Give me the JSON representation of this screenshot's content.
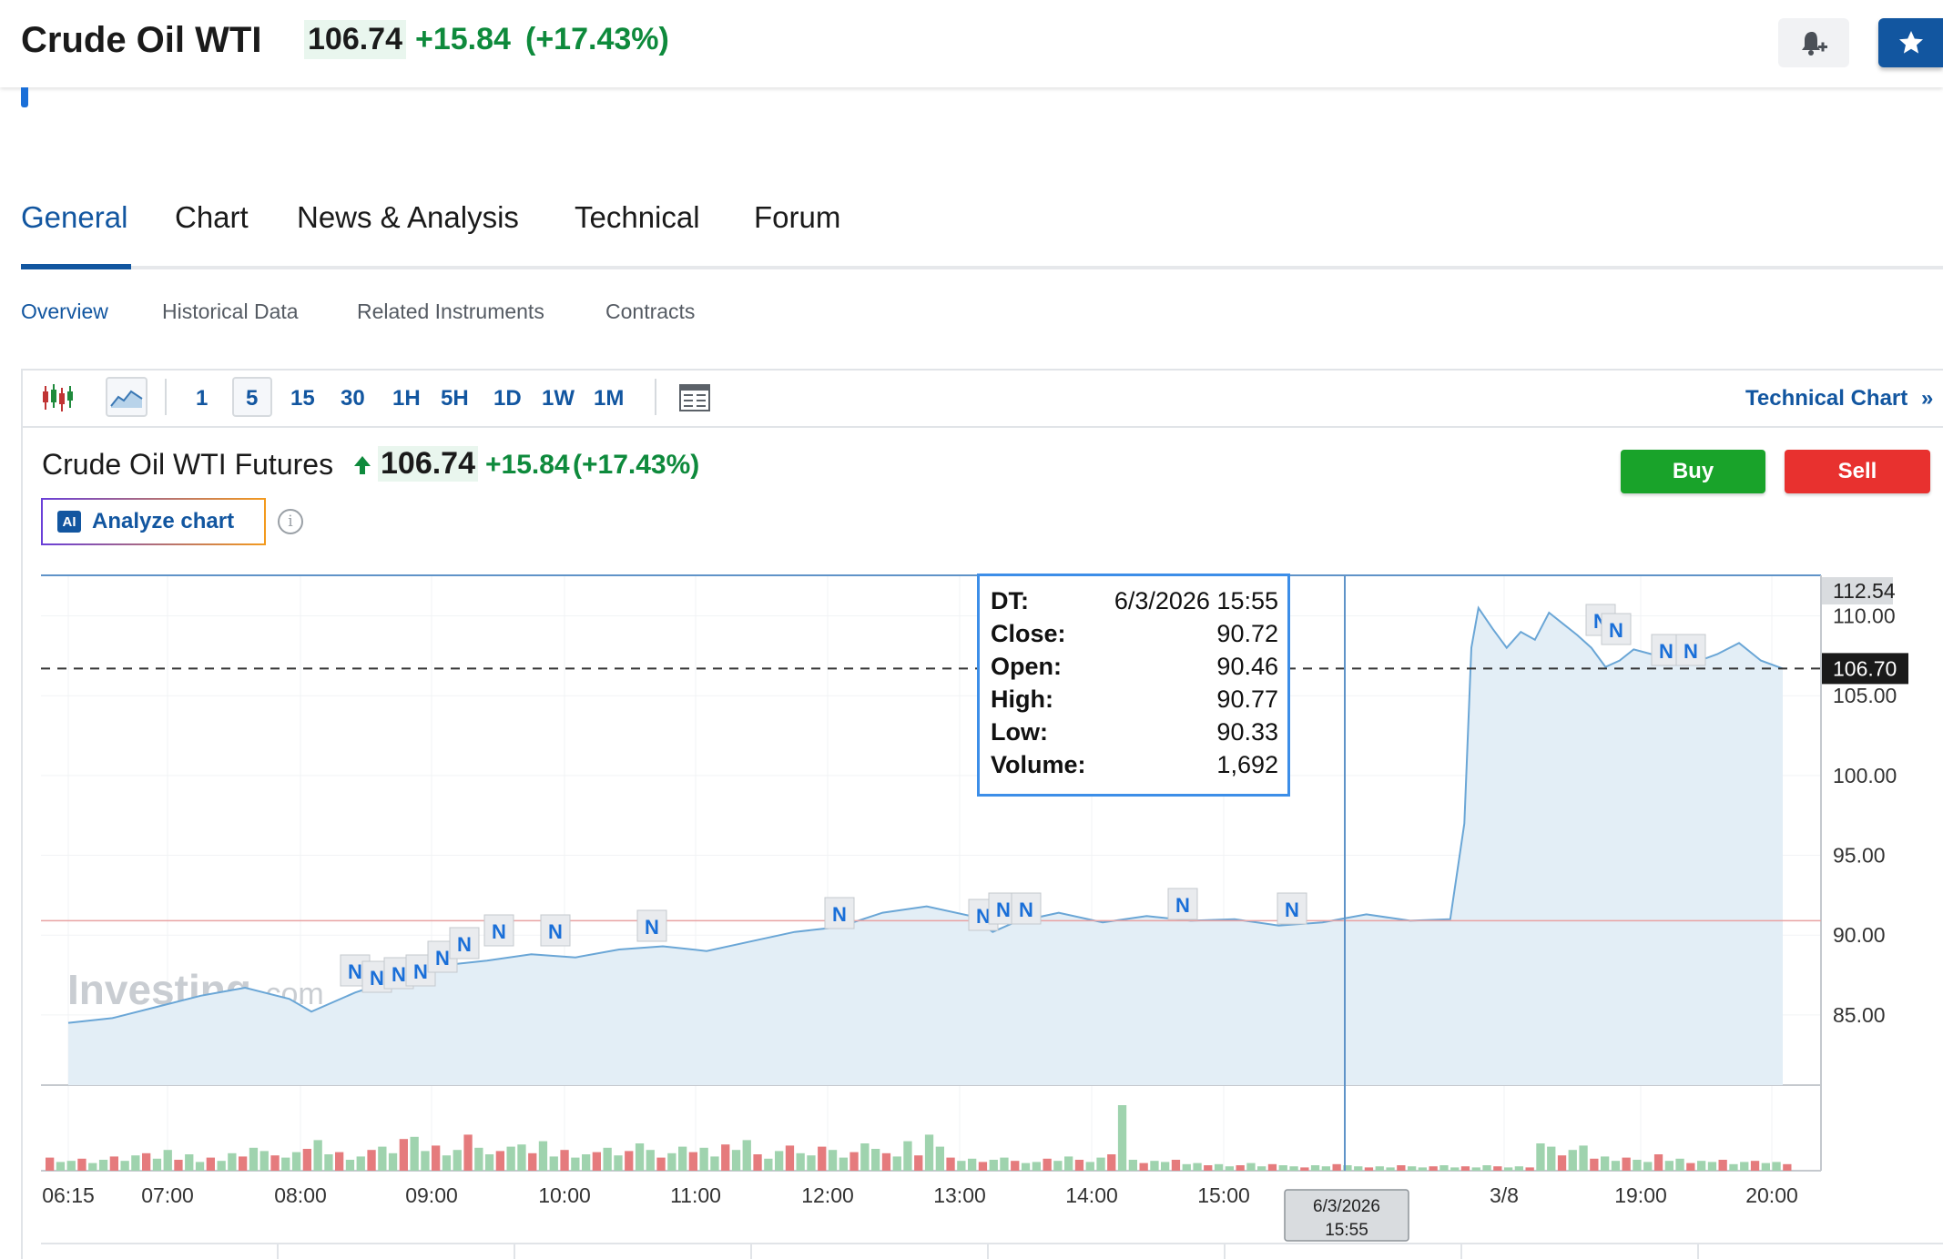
{
  "header": {
    "title": "Crude Oil WTI",
    "price": "106.74",
    "change": "+15.84",
    "change_pct": "(+17.43%)"
  },
  "tabs": [
    "General",
    "Chart",
    "News & Analysis",
    "Technical",
    "Forum"
  ],
  "subtabs": [
    "Overview",
    "Historical Data",
    "Related Instruments",
    "Contracts"
  ],
  "toolbar": {
    "timeframes": [
      "1",
      "5",
      "15",
      "30",
      "1H",
      "5H",
      "1D",
      "1W",
      "1M"
    ],
    "selected_timeframe": "5",
    "technical_chart_label": "Technical Chart",
    "technical_chart_arrow": "»"
  },
  "chart_header": {
    "title": "Crude Oil WTI Futures",
    "price": "106.74",
    "change": "+15.84",
    "change_pct": "(+17.43%)",
    "buy_label": "Buy",
    "sell_label": "Sell",
    "analyze_label": "Analyze chart",
    "ai_badge": "AI"
  },
  "watermark": {
    "main": "Investing",
    "suffix": ".com"
  },
  "tooltip": {
    "rows": [
      {
        "key": "DT:",
        "value": "6/3/2026 15:55"
      },
      {
        "key": "Close:",
        "value": "90.72"
      },
      {
        "key": "Open:",
        "value": "90.46"
      },
      {
        "key": "High:",
        "value": "90.77"
      },
      {
        "key": "Low:",
        "value": "90.33"
      },
      {
        "key": "Volume:",
        "value": "1,692"
      }
    ]
  },
  "colors": {
    "accent": "#1256a0",
    "up": "#0e8a3c",
    "line": "#6aa6d6",
    "area": "#e3eef6",
    "vol_up": "#9fd3ae",
    "vol_down": "#e57b7d",
    "buy": "#19a32a",
    "sell": "#e8312f"
  },
  "chart_data": {
    "type": "area",
    "y_ticks": [
      "85.00",
      "90.00",
      "95.00",
      "100.00",
      "105.00",
      "110.00"
    ],
    "ylim": [
      80.6,
      112.54
    ],
    "top_label": "112.54",
    "last_price_label": "106.70",
    "last_price": 106.7,
    "reference_price": 90.9,
    "x_ticks": [
      "06:15",
      "07:00",
      "08:00",
      "09:00",
      "10:00",
      "11:00",
      "12:00",
      "13:00",
      "14:00",
      "15:00",
      "3/8",
      "19:00",
      "20:00"
    ],
    "crosshair_label": [
      "6/3/2026",
      "15:55"
    ],
    "news_marker_label": "N",
    "series": [
      {
        "x": [
          "06:15",
          "06:35",
          "06:55",
          "07:15",
          "07:35",
          "07:55",
          "08:05",
          "08:25",
          "08:45",
          "09:05",
          "09:25",
          "09:45",
          "10:05",
          "10:25",
          "10:45",
          "11:05",
          "11:25",
          "11:45",
          "12:05",
          "12:25",
          "12:45",
          "13:05",
          "13:15",
          "13:25",
          "13:45",
          "14:05",
          "14:25",
          "14:45",
          "15:05",
          "15:25",
          "15:45",
          "16:05",
          "16:25",
          "16:45",
          "16:55",
          "17:00",
          "17:05",
          "17:15",
          "17:25",
          "17:35",
          "17:45",
          "17:55",
          "18:05",
          "18:15",
          "18:25",
          "18:35",
          "18:45",
          "18:55",
          "19:05",
          "19:15",
          "19:25",
          "19:35",
          "19:45",
          "19:55",
          "20:05"
        ],
        "values": [
          84.5,
          84.8,
          85.5,
          86.2,
          86.7,
          86.0,
          85.2,
          86.4,
          87.3,
          88.1,
          88.4,
          88.8,
          88.6,
          89.1,
          89.3,
          89.0,
          89.6,
          90.2,
          90.5,
          91.4,
          91.8,
          91.2,
          90.2,
          90.8,
          91.4,
          90.8,
          91.2,
          90.9,
          91.0,
          90.6,
          90.8,
          91.3,
          90.9,
          91.0,
          97.0,
          108.0,
          110.5,
          109.2,
          108.0,
          109.0,
          108.5,
          110.2,
          109.5,
          108.8,
          108.0,
          106.8,
          107.2,
          107.9,
          107.6,
          107.2,
          107.1,
          107.6,
          108.3,
          107.2,
          106.7
        ]
      }
    ],
    "volume": [
      {
        "x": "06:15",
        "values": [
          12,
          8,
          9,
          11,
          7,
          10,
          13,
          9,
          14,
          16,
          11,
          19,
          10,
          15,
          8,
          12,
          9,
          16,
          13,
          21,
          18,
          14,
          12,
          17,
          20,
          28,
          15,
          17,
          10,
          13,
          19,
          22,
          16,
          29,
          31,
          18,
          23,
          14,
          19,
          33,
          21,
          15,
          18,
          22,
          24,
          16,
          27,
          13,
          19,
          12,
          15,
          17,
          21,
          14,
          18,
          25,
          19,
          12,
          16,
          22,
          17,
          21,
          13,
          24,
          19,
          28,
          15,
          11,
          18,
          23,
          16,
          14,
          22,
          19,
          12,
          17,
          25,
          20,
          16,
          13,
          27,
          14,
          33,
          22,
          12,
          9,
          11,
          8,
          10,
          12,
          9,
          7,
          8,
          11,
          9,
          13,
          10,
          8,
          12,
          15,
          60,
          10,
          7,
          9,
          8,
          10,
          6,
          7,
          5,
          6,
          4,
          5,
          7,
          4,
          6,
          5,
          4,
          3,
          5,
          4,
          6,
          5,
          4,
          3,
          4,
          3,
          5,
          4,
          3,
          4,
          5,
          3,
          4,
          3,
          5,
          4,
          3,
          4,
          3,
          25,
          22,
          14,
          19,
          23,
          11,
          13,
          9,
          12,
          10,
          8,
          15,
          9,
          11,
          7,
          9,
          8,
          10,
          6,
          8,
          9,
          7,
          8,
          6
        ]
      }
    ]
  }
}
